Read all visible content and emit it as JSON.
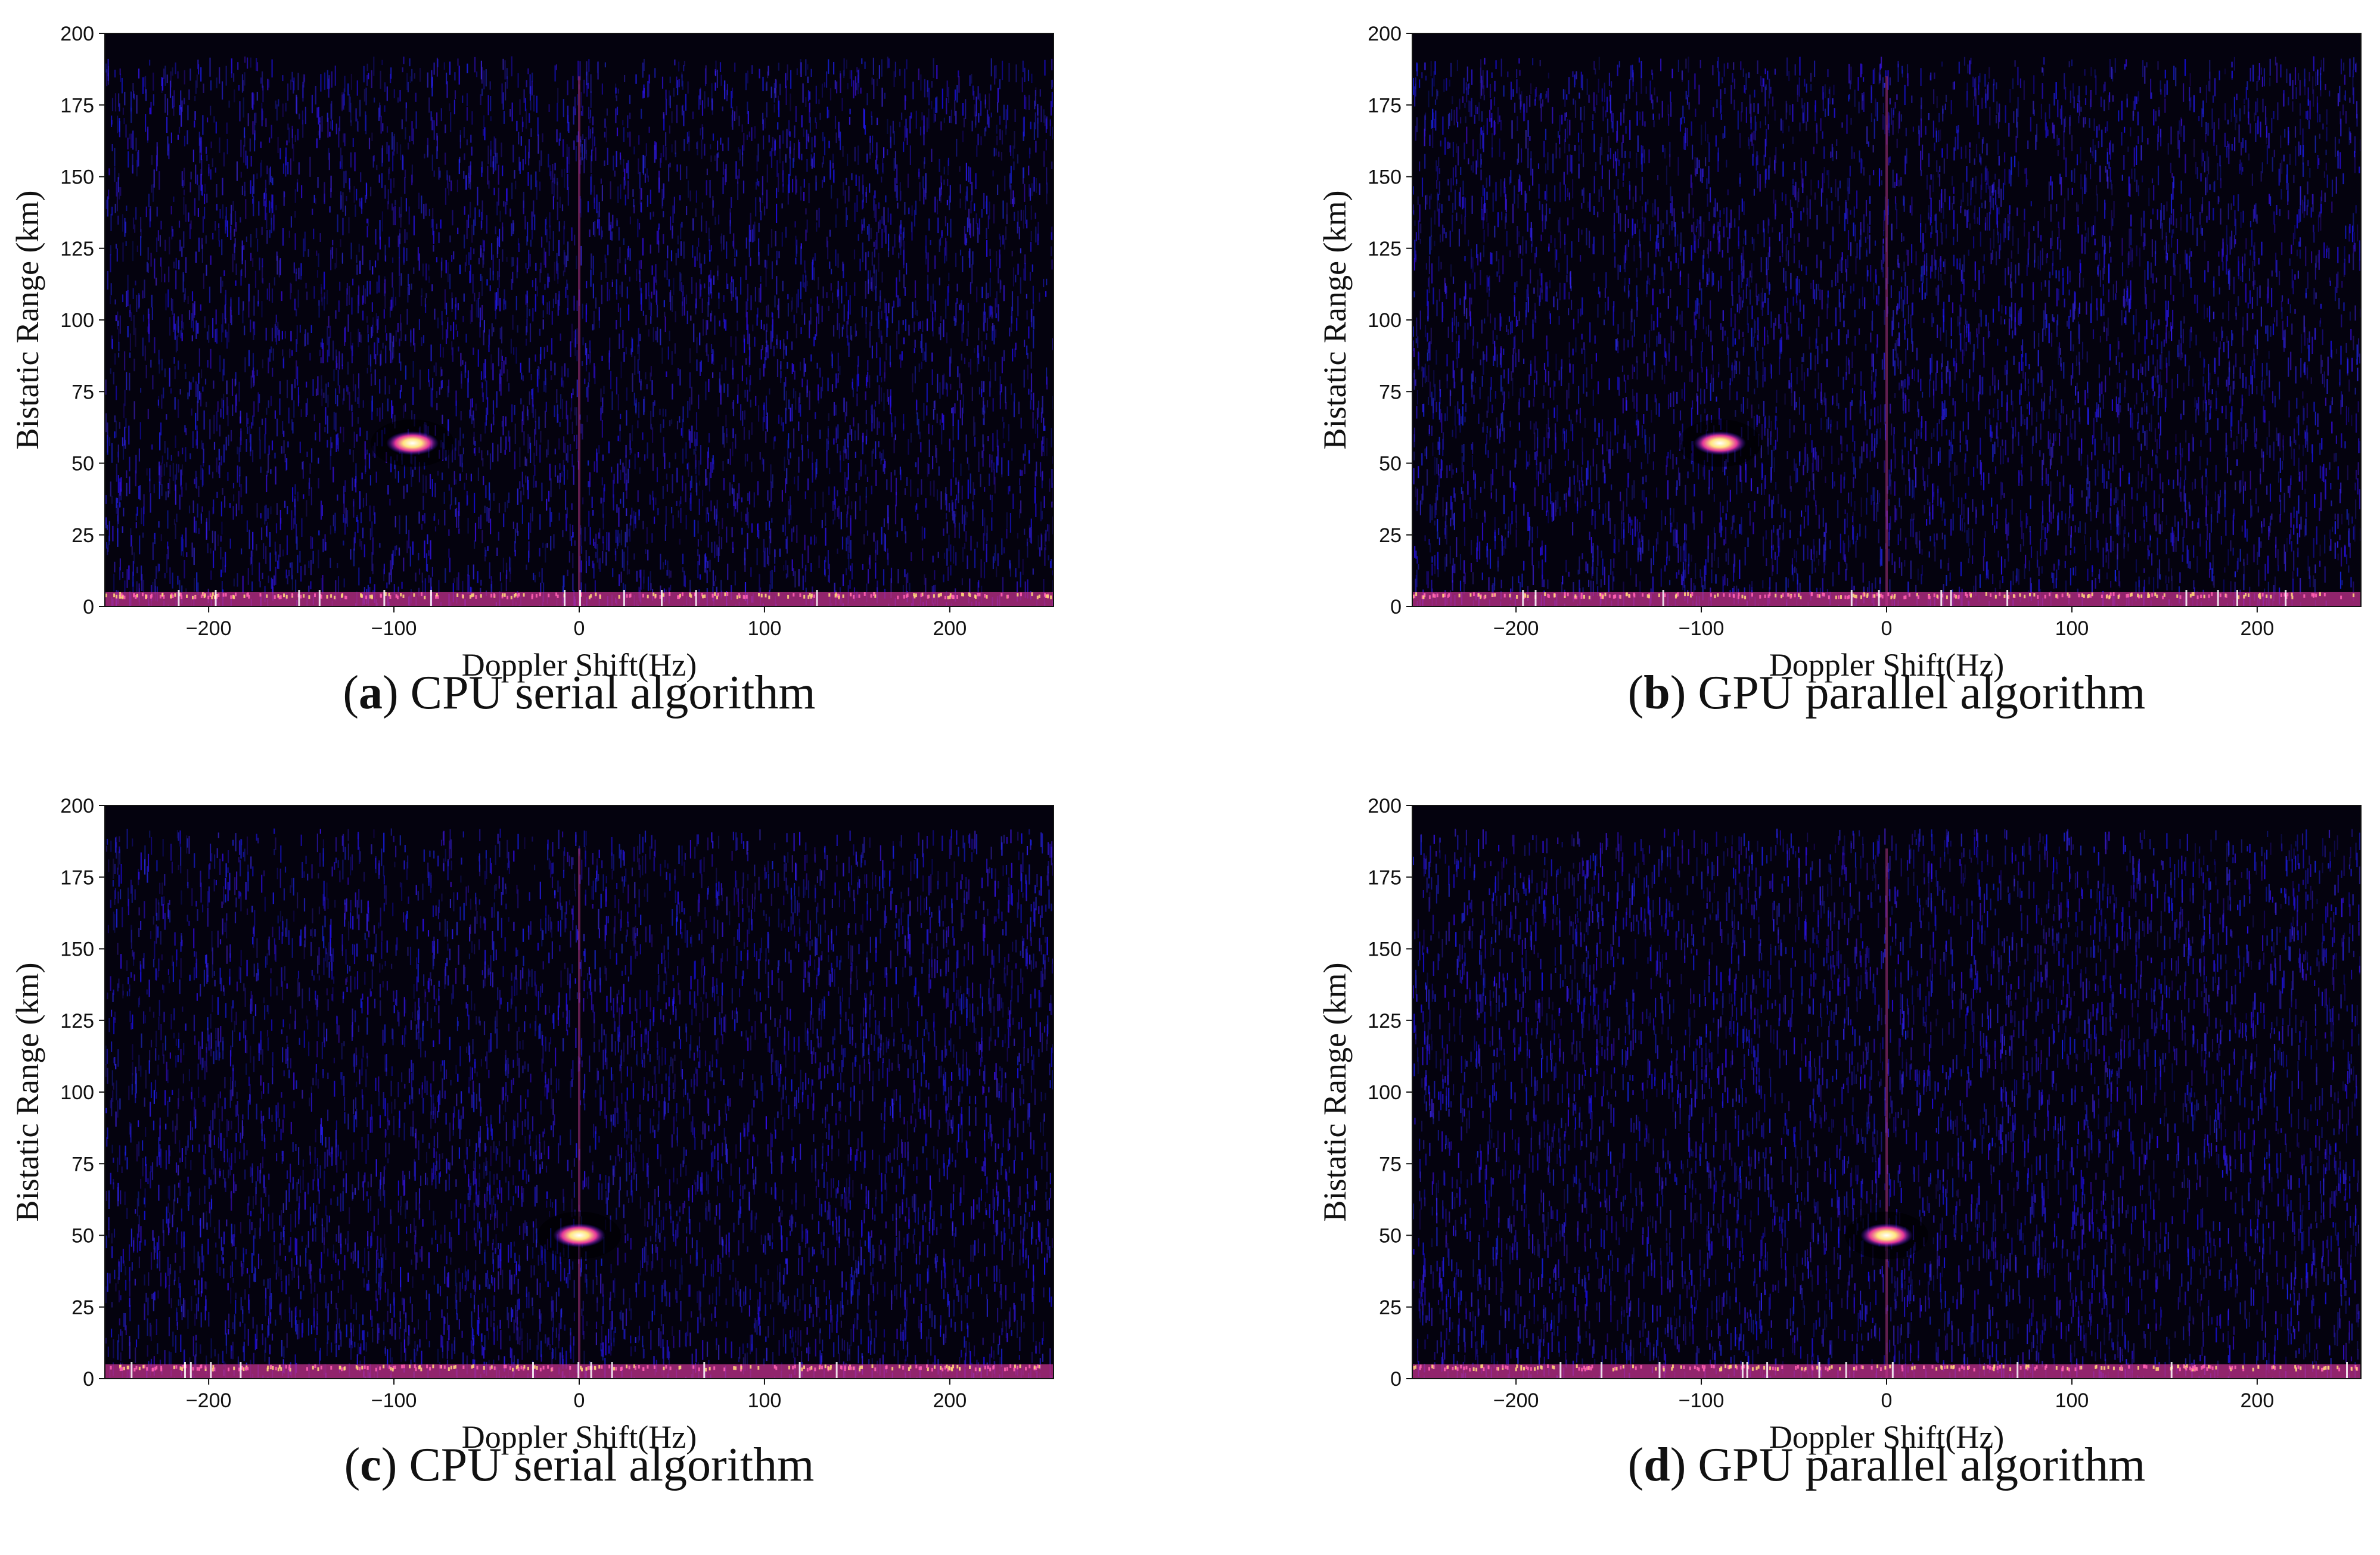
{
  "chart_data": [
    {
      "type": "heatmap",
      "caption_letter": "a",
      "caption_text": ") CPU serial algorithm",
      "caption_open": "(",
      "xlabel": "Doppler Shift(Hz)",
      "ylabel": "Bistatic Range (km)",
      "xlim": [
        -256,
        256
      ],
      "ylim": [
        0,
        200
      ],
      "xticks": [
        -200,
        -100,
        0,
        100,
        200
      ],
      "yticks": [
        0,
        25,
        50,
        75,
        100,
        125,
        150,
        175,
        200
      ],
      "colormap": "black-blue-magenta-yellow-white",
      "targets": [
        {
          "doppler": -90,
          "range": 57,
          "intensity": 1.0
        }
      ],
      "zero_doppler_line": true,
      "near_range_clutter_km": 5
    },
    {
      "type": "heatmap",
      "caption_letter": "b",
      "caption_text": ") GPU parallel algorithm",
      "caption_open": "(",
      "xlabel": "Doppler Shift(Hz)",
      "ylabel": "Bistatic Range (km)",
      "xlim": [
        -256,
        256
      ],
      "ylim": [
        0,
        200
      ],
      "xticks": [
        -200,
        -100,
        0,
        100,
        200
      ],
      "yticks": [
        0,
        25,
        50,
        75,
        100,
        125,
        150,
        175,
        200
      ],
      "colormap": "black-blue-magenta-yellow-white",
      "targets": [
        {
          "doppler": -90,
          "range": 57,
          "intensity": 1.0
        }
      ],
      "zero_doppler_line": true,
      "near_range_clutter_km": 5
    },
    {
      "type": "heatmap",
      "caption_letter": "c",
      "caption_text": ") CPU serial algorithm",
      "caption_open": "(",
      "xlabel": "Doppler Shift(Hz)",
      "ylabel": "Bistatic Range (km)",
      "xlim": [
        -256,
        256
      ],
      "ylim": [
        0,
        200
      ],
      "xticks": [
        -200,
        -100,
        0,
        100,
        200
      ],
      "yticks": [
        0,
        25,
        50,
        75,
        100,
        125,
        150,
        175,
        200
      ],
      "colormap": "black-blue-magenta-yellow-white",
      "targets": [
        {
          "doppler": 0,
          "range": 50,
          "intensity": 1.0
        }
      ],
      "zero_doppler_line": true,
      "near_range_clutter_km": 5
    },
    {
      "type": "heatmap",
      "caption_letter": "d",
      "caption_text": ") GPU parallel algorithm",
      "caption_open": "(",
      "xlabel": "Doppler Shift(Hz)",
      "ylabel": "Bistatic Range (km)",
      "xlim": [
        -256,
        256
      ],
      "ylim": [
        0,
        200
      ],
      "xticks": [
        -200,
        -100,
        0,
        100,
        200
      ],
      "yticks": [
        0,
        25,
        50,
        75,
        100,
        125,
        150,
        175,
        200
      ],
      "colormap": "black-blue-magenta-yellow-white",
      "targets": [
        {
          "doppler": 0,
          "range": 50,
          "intensity": 1.0
        }
      ],
      "zero_doppler_line": true,
      "near_range_clutter_km": 5
    }
  ]
}
